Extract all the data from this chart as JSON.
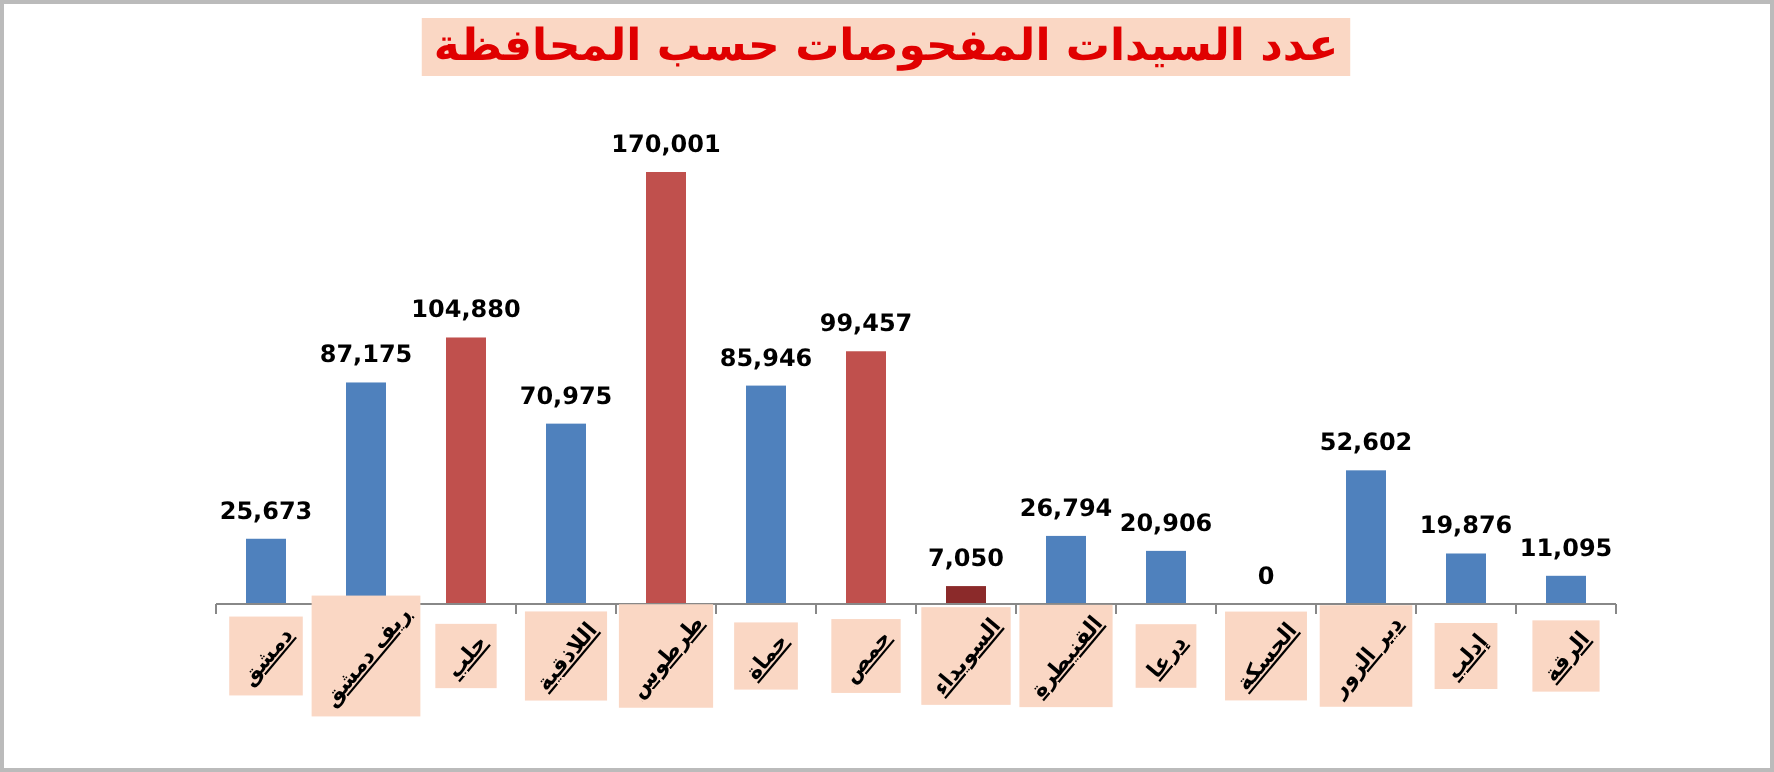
{
  "chart_data": {
    "type": "bar",
    "title": "عدد السيدات المفحوصات حسب المحافظة",
    "categories": [
      "دمشق",
      "ريف دمشق",
      "حلب",
      "اللاذقية",
      "طرطوس",
      "حماة",
      "حمص",
      "السويداء",
      "القنيطرة",
      "درعا",
      "الحسكة",
      "دير الزور",
      "إدلب",
      "الرقة"
    ],
    "values": [
      25673,
      87175,
      104880,
      70975,
      170001,
      85946,
      99457,
      7050,
      26794,
      20906,
      0,
      52602,
      19876,
      11095
    ],
    "colors": [
      "#4f81bd",
      "#4f81bd",
      "#c0504d",
      "#4f81bd",
      "#c0504d",
      "#4f81bd",
      "#c0504d",
      "#8b2a2a",
      "#4f81bd",
      "#4f81bd",
      "#4f81bd",
      "#4f81bd",
      "#4f81bd",
      "#4f81bd"
    ],
    "value_labels": [
      "25,673",
      "87,175",
      "104,880",
      "70,975",
      "170,001",
      "85,946",
      "99,457",
      "7,050",
      "26,794",
      "20,906",
      "0",
      "52,602",
      "19,876",
      "11,095"
    ]
  }
}
